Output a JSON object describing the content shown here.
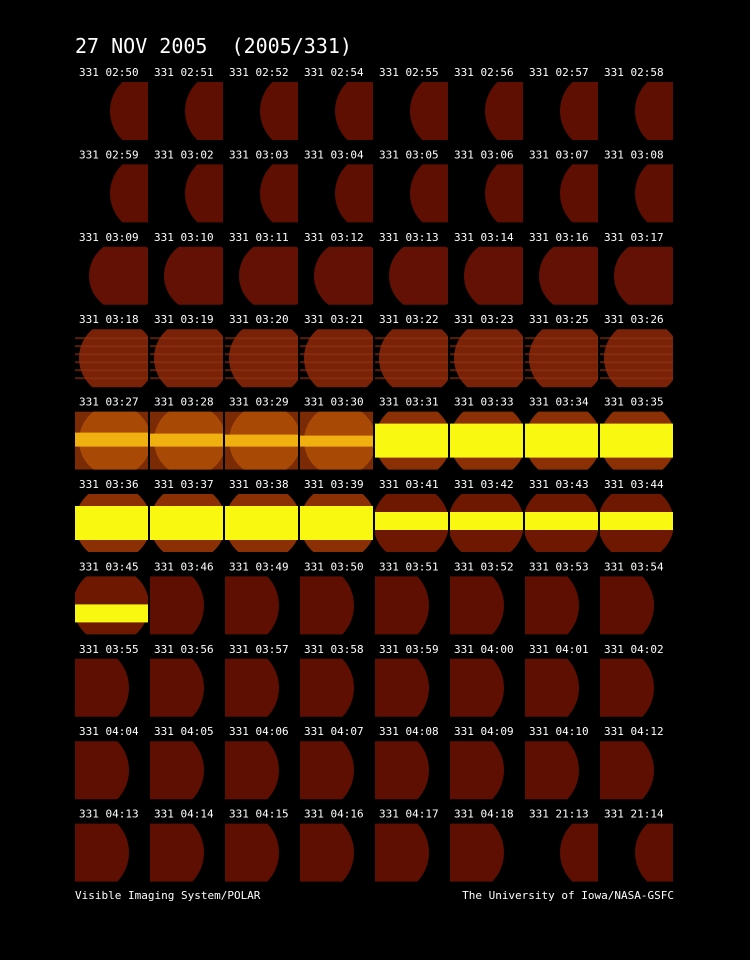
{
  "header": {
    "title": "27 NOV 2005  (2005/331)"
  },
  "frames": [
    "331 02:50",
    "331 02:51",
    "331 02:52",
    "331 02:54",
    "331 02:55",
    "331 02:56",
    "331 02:57",
    "331 02:58",
    "331 02:59",
    "331 03:02",
    "331 03:03",
    "331 03:04",
    "331 03:05",
    "331 03:06",
    "331 03:07",
    "331 03:08",
    "331 03:09",
    "331 03:10",
    "331 03:11",
    "331 03:12",
    "331 03:13",
    "331 03:14",
    "331 03:16",
    "331 03:17",
    "331 03:18",
    "331 03:19",
    "331 03:20",
    "331 03:21",
    "331 03:22",
    "331 03:23",
    "331 03:25",
    "331 03:26",
    "331 03:27",
    "331 03:28",
    "331 03:29",
    "331 03:30",
    "331 03:31",
    "331 03:33",
    "331 03:34",
    "331 03:35",
    "331 03:36",
    "331 03:37",
    "331 03:38",
    "331 03:39",
    "331 03:41",
    "331 03:42",
    "331 03:43",
    "331 03:44",
    "331 03:45",
    "331 03:46",
    "331 03:49",
    "331 03:50",
    "331 03:51",
    "331 03:52",
    "331 03:53",
    "331 03:54",
    "331 03:55",
    "331 03:56",
    "331 03:57",
    "331 03:58",
    "331 03:59",
    "331 04:00",
    "331 04:01",
    "331 04:02",
    "331 04:04",
    "331 04:05",
    "331 04:06",
    "331 04:07",
    "331 04:08",
    "331 04:09",
    "331 04:10",
    "331 04:12",
    "331 04:13",
    "331 04:14",
    "331 04:15",
    "331 04:16",
    "331 04:17",
    "331 04:18",
    "331 21:13",
    "331 21:14"
  ],
  "footer": {
    "left": "Visible Imaging System/POLAR",
    "right": "The University of Iowa/NASA-GSFC"
  }
}
